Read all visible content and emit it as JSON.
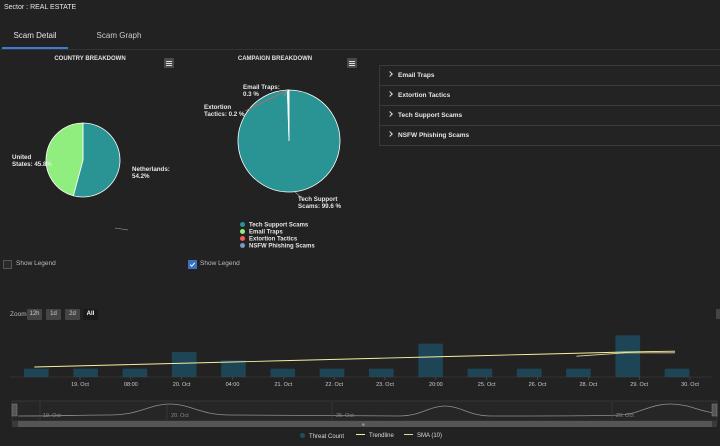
{
  "header": {
    "sector": "Sector : REAL ESTATE"
  },
  "tabs": [
    {
      "label": "Scam Detail",
      "active": true
    },
    {
      "label": "Scam Graph",
      "active": false
    }
  ],
  "country_breakdown": {
    "title": "COUNTRY BREAKDOWN",
    "show_legend_label": "Show Legend",
    "show_legend_checked": false,
    "labels": {
      "us": "United States: 45.8%",
      "nl": "Netherlands: 54.2%"
    }
  },
  "campaign_breakdown": {
    "title": "CAMPAIGN BREAKDOWN",
    "show_legend_label": "Show Legend",
    "show_legend_checked": true,
    "labels": {
      "email": "Email Traps: 0.3 %",
      "extortion": "Extortion Tactics: 0.2 %",
      "tech": "Tech Support Scams: 99.6 %"
    },
    "legend": [
      {
        "label": "Tech Support Scams",
        "color": "#2a9393"
      },
      {
        "label": "Email Traps",
        "color": "#90ee7e"
      },
      {
        "label": "Extortion Tactics",
        "color": "#f45b5b"
      },
      {
        "label": "NSFW Phishing Scams",
        "color": "#7798bf"
      }
    ]
  },
  "accordion": [
    {
      "label": "Email Traps"
    },
    {
      "label": "Extortion Tactics"
    },
    {
      "label": "Tech Support Scams"
    },
    {
      "label": "NSFW Phishing Scams"
    }
  ],
  "zoom": {
    "label": "Zoom",
    "buttons": [
      "12h",
      "1d",
      "2d",
      "All"
    ],
    "active": "All"
  },
  "timeline": {
    "x_ticks": [
      "19. Oct",
      "08:00",
      "20. Oct",
      "04:00",
      "21. Oct",
      "22. Oct",
      "23. Oct",
      "20:00",
      "25. Oct",
      "26. Oct",
      "28. Oct",
      "29. Oct",
      "30. Oct"
    ],
    "navigator_ticks": [
      "19. Oct",
      "20. Oct",
      "25. Oct",
      "29. Oct"
    ],
    "legend": [
      {
        "label": "Threat Count",
        "color": "#1f4f63"
      },
      {
        "label": "Trendline",
        "color": "#f5f0a0"
      },
      {
        "label": "SMA (10)",
        "color": "#e8d898"
      }
    ]
  },
  "chart_data": [
    {
      "type": "pie",
      "title": "COUNTRY BREAKDOWN",
      "slices": [
        {
          "name": "Netherlands",
          "value": 54.2,
          "color": "#2a9393"
        },
        {
          "name": "United States",
          "value": 45.8,
          "color": "#90ee7e"
        }
      ]
    },
    {
      "type": "pie",
      "title": "CAMPAIGN BREAKDOWN",
      "slices": [
        {
          "name": "Tech Support Scams",
          "value": 99.6,
          "color": "#2a9393"
        },
        {
          "name": "Email Traps",
          "value": 0.3,
          "color": "#90ee7e"
        },
        {
          "name": "Extortion Tactics",
          "value": 0.2,
          "color": "#f45b5b"
        }
      ]
    },
    {
      "type": "bar",
      "series": [
        {
          "name": "Threat Count",
          "values": [
            1,
            1,
            1,
            3,
            2,
            1,
            1,
            1,
            4,
            1,
            1,
            1,
            5,
            1
          ]
        },
        {
          "name": "Trendline",
          "values": [
            1.2,
            1.35,
            1.5,
            1.65,
            1.8,
            1.95,
            2.1,
            2.25,
            2.4,
            2.55,
            2.7,
            2.85,
            3.0,
            3.1
          ]
        },
        {
          "name": "SMA (10)",
          "values": [
            null,
            null,
            null,
            null,
            null,
            null,
            null,
            null,
            null,
            null,
            null,
            2.5,
            2.9,
            2.9
          ]
        }
      ],
      "ylim": [
        0,
        6
      ]
    }
  ]
}
